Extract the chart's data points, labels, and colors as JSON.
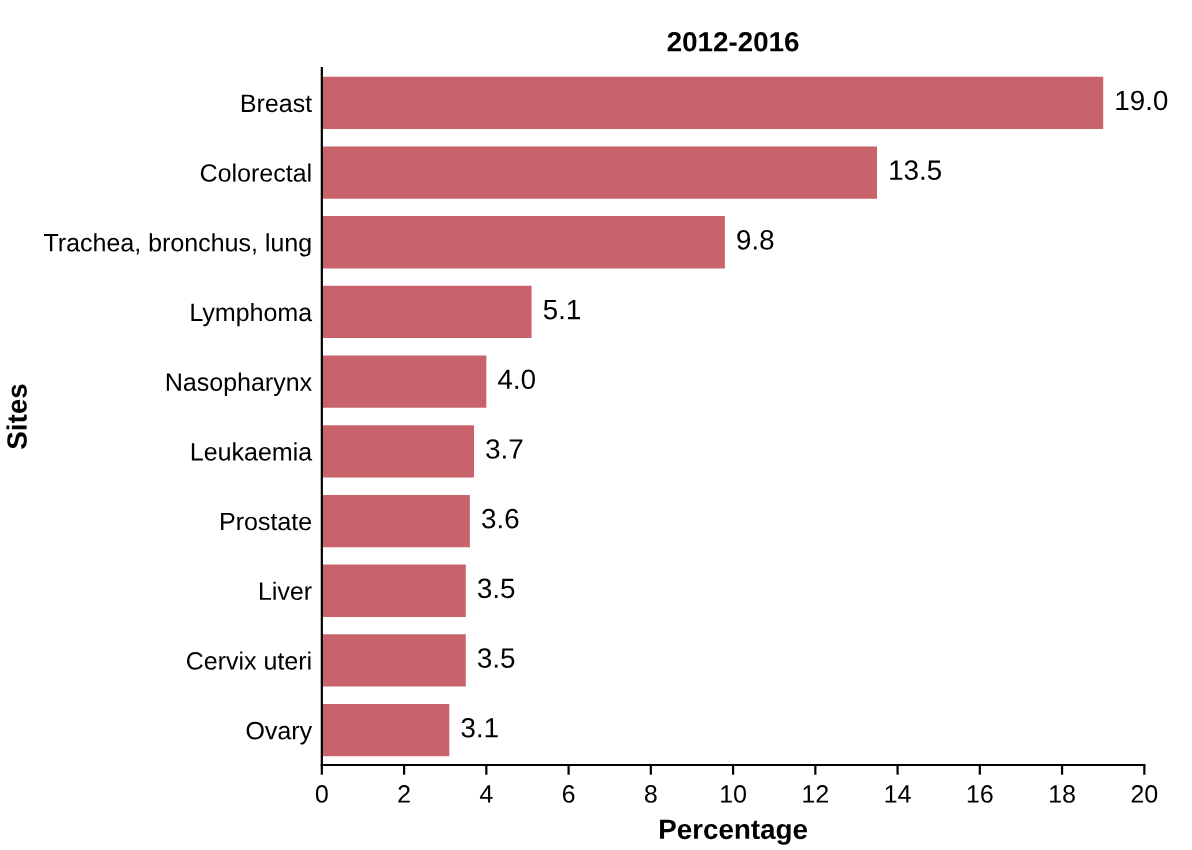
{
  "chart_data": {
    "type": "bar",
    "orientation": "horizontal",
    "title": "2012-2016",
    "xlabel": "Percentage",
    "ylabel": "Sites",
    "categories": [
      "Breast",
      "Colorectal",
      "Trachea, bronchus, lung",
      "Lymphoma",
      "Nasopharynx",
      "Leukaemia",
      "Prostate",
      "Liver",
      "Cervix uteri",
      "Ovary"
    ],
    "values": [
      19.0,
      13.5,
      9.8,
      5.1,
      4.0,
      3.7,
      3.6,
      3.5,
      3.5,
      3.1
    ],
    "value_labels": [
      "19.0",
      "13.5",
      "9.8",
      "5.1",
      "4.0",
      "3.7",
      "3.6",
      "3.5",
      "3.5",
      "3.1"
    ],
    "color": "#c8636c",
    "xlim": [
      0,
      20
    ],
    "xticks": [
      0,
      2,
      4,
      6,
      8,
      10,
      12,
      14,
      16,
      18,
      20
    ],
    "grid": false,
    "legend": false
  }
}
